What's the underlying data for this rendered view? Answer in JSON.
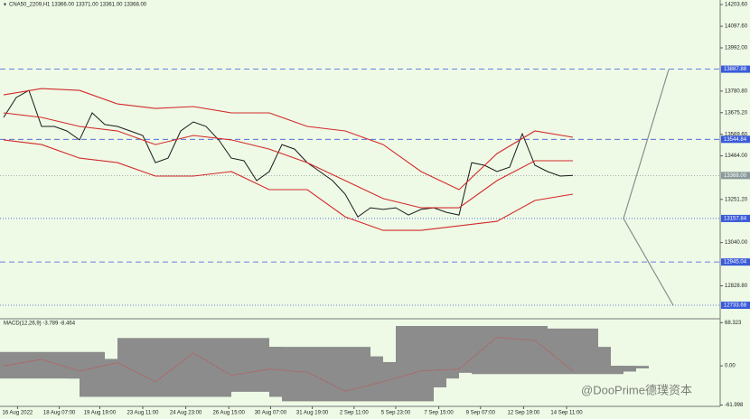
{
  "chart_data": [
    {
      "type": "line",
      "title": "CNA50_2209,H1 13366.00 13371.00 13361.00 13368.00",
      "xlim": [
        -0.2857,
        56.643
      ],
      "ylim": [
        12672,
        14226
      ],
      "yticks": [
        {
          "value": 14203.6,
          "label": "14203.60"
        },
        {
          "value": 14097.6,
          "label": "14097.60"
        },
        {
          "value": 13992,
          "label": "13992.00"
        },
        {
          "value": 13780.8,
          "label": "13780.80"
        },
        {
          "value": 13675.2,
          "label": "13675.20"
        },
        {
          "value": 13569.6,
          "label": "13569.60"
        },
        {
          "value": 13464,
          "label": "13464.00"
        },
        {
          "value": 13251.2,
          "label": "13251.20"
        },
        {
          "value": 13040,
          "label": "13040.00"
        },
        {
          "value": 12828.8,
          "label": "12828.80"
        }
      ],
      "levels": [
        {
          "value": 13887.88,
          "label": "13887.88",
          "style": "dashed",
          "color": "#3a5bd9"
        },
        {
          "value": 13544.84,
          "label": "13544.84",
          "style": "dashed",
          "color": "#3a5bd9"
        },
        {
          "value": 13157.84,
          "label": "13157.84",
          "style": "dotted",
          "color": "#3a5bd9"
        },
        {
          "value": 12945.04,
          "label": "12945.04",
          "style": "dashed",
          "color": "#3a5bd9"
        },
        {
          "value": 12733.68,
          "label": "12733.68",
          "style": "dotted",
          "color": "#3a5bd9"
        },
        {
          "value": 13368,
          "label": "13368.00",
          "style": "dotted",
          "color": "#8a9a9a"
        }
      ],
      "series": [
        {
          "color": "#1a1a1a",
          "x": [
            0,
            1,
            2,
            3,
            4,
            5,
            6,
            7,
            8,
            9,
            10,
            11,
            12,
            13,
            14,
            15,
            16,
            17,
            18,
            19,
            20,
            21,
            22,
            23,
            24,
            25,
            26,
            27,
            28,
            29,
            30,
            31,
            32,
            33,
            34,
            35,
            36,
            37,
            38,
            39,
            40,
            41,
            42,
            43,
            44,
            45
          ],
          "values": [
            13652,
            13749,
            13784,
            13608,
            13608,
            13586,
            13542,
            13674,
            13617,
            13608,
            13586,
            13564,
            13431,
            13453,
            13586,
            13630,
            13608,
            13542,
            13453,
            13440,
            13343,
            13387,
            13519,
            13497,
            13431,
            13387,
            13343,
            13277,
            13166,
            13210,
            13202,
            13210,
            13175,
            13202,
            13210,
            13188,
            13175,
            13431,
            13418,
            13387,
            13409,
            13572,
            13418,
            13387,
            13365,
            13368
          ]
        },
        {
          "color": "#d42a2a",
          "x": [
            0,
            3,
            6,
            9,
            12,
            15,
            18,
            21,
            24,
            27,
            30,
            33,
            36,
            39,
            42,
            45
          ],
          "values": [
            13762,
            13793,
            13784,
            13718,
            13696,
            13705,
            13674,
            13674,
            13608,
            13586,
            13519,
            13387,
            13299,
            13475,
            13586,
            13555
          ]
        },
        {
          "color": "#d42a2a",
          "x": [
            0,
            3,
            6,
            9,
            12,
            15,
            18,
            21,
            24,
            27,
            30,
            33,
            36,
            39,
            42,
            45
          ],
          "values": [
            13674,
            13652,
            13608,
            13586,
            13519,
            13564,
            13542,
            13497,
            13431,
            13343,
            13255,
            13210,
            13210,
            13343,
            13440,
            13440
          ]
        },
        {
          "color": "#d42a2a",
          "x": [
            0,
            3,
            6,
            9,
            12,
            15,
            18,
            21,
            24,
            27,
            30,
            33,
            36,
            39,
            42,
            45
          ],
          "values": [
            13542,
            13519,
            13453,
            13431,
            13365,
            13365,
            13387,
            13299,
            13299,
            13166,
            13100,
            13100,
            13122,
            13144,
            13246,
            13277
          ]
        }
      ]
    },
    {
      "type": "macd",
      "title": "MACD(12,26,9) -3.789 -8.464",
      "xlim": [
        -0.2857,
        56.643
      ],
      "ylim": [
        -64,
        73
      ],
      "yticks": [
        {
          "value": 68.323,
          "label": "68.323"
        },
        {
          "value": 0,
          "label": "0.00"
        },
        {
          "value": -61.998,
          "label": "-61.998"
        }
      ],
      "xticks": [
        {
          "value": 1.1,
          "label": "16 Aug 2022"
        },
        {
          "value": 4.4,
          "label": "18 Aug 07:00"
        },
        {
          "value": 7.6,
          "label": "19 Aug 19:00"
        },
        {
          "value": 11,
          "label": "23 Aug 11:00"
        },
        {
          "value": 14.4,
          "label": "24 Aug 23:00"
        },
        {
          "value": 17.8,
          "label": "26 Aug 15:00"
        },
        {
          "value": 21.1,
          "label": "30 Aug 07:00"
        },
        {
          "value": 24.4,
          "label": "31 Aug 19:00"
        },
        {
          "value": 27.7,
          "label": "2 Sep 11:00"
        },
        {
          "value": 31,
          "label": "5 Sep 23:00"
        },
        {
          "value": 34.4,
          "label": "7 Sep 15:00"
        },
        {
          "value": 37.7,
          "label": "9 Sep 07:00"
        },
        {
          "value": 41.1,
          "label": "12 Sep 19:00"
        },
        {
          "value": 44.5,
          "label": "14 Sep 11:00"
        }
      ],
      "histogram": {
        "color": "#8c8c8c",
        "x": [
          0,
          1,
          2,
          3,
          4,
          5,
          6,
          7,
          8,
          9,
          10,
          11,
          12,
          13,
          14,
          15,
          16,
          17,
          18,
          19,
          20,
          21,
          22,
          23,
          24,
          25,
          26,
          27,
          28,
          29,
          30,
          31,
          32,
          33,
          34,
          35,
          36,
          37,
          38,
          39,
          40,
          41,
          42,
          43,
          44,
          45
        ],
        "values": [
          8,
          15,
          22,
          -13,
          -20,
          -6,
          -3,
          8,
          11,
          6,
          -6,
          -20,
          -49,
          -34,
          8,
          44,
          30,
          1,
          -20,
          -27,
          -41,
          -13,
          8,
          30,
          15,
          -20,
          -34,
          -49,
          -56,
          -34,
          -20,
          -9,
          -11,
          -6,
          1,
          6,
          -6,
          63,
          44,
          8,
          15,
          59,
          30,
          -13,
          -9,
          -4
        ]
      },
      "signal": {
        "color": "#d04040",
        "x": [
          0,
          3,
          6,
          9,
          12,
          15,
          18,
          21,
          24,
          27,
          30,
          33,
          36,
          39,
          42,
          45
        ],
        "values": [
          0,
          10,
          -8,
          5,
          -25,
          20,
          -15,
          -5,
          -10,
          -40,
          -25,
          -8,
          -5,
          45,
          40,
          -8
        ]
      }
    }
  ],
  "watermark": "@DooPrime德璞资本"
}
